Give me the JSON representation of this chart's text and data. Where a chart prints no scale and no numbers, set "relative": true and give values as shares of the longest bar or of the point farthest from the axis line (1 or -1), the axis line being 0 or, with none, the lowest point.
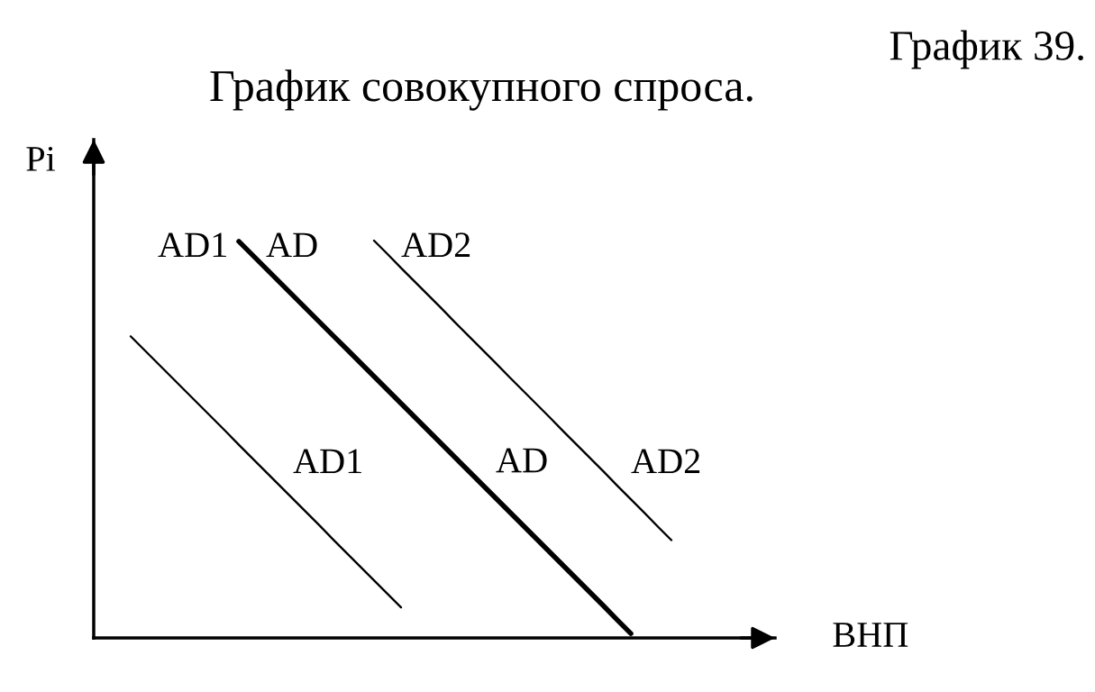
{
  "chart_data": {
    "type": "line",
    "title": "График совокупного спроса.",
    "xlabel": "ВНП",
    "ylabel": "Pi",
    "relative": true,
    "line_style": "solid",
    "tick_labels": false,
    "categories": [
      null,
      null,
      null,
      null,
      null,
      null,
      null,
      null,
      null,
      null,
      null,
      null,
      null,
      null,
      null,
      null,
      null,
      null,
      null,
      null,
      null,
      null,
      null,
      null,
      null,
      null,
      null,
      null,
      null,
      null,
      null,
      null,
      null,
      null,
      null,
      null,
      null,
      null,
      null,
      null,
      null,
      null,
      null,
      null,
      null,
      null,
      null,
      null,
      null,
      null
    ],
    "series": [
      {
        "name": "AD1",
        "color": "#000000",
        "values": [
          null,
          null,
          0.759,
          0.725,
          0.691,
          0.657,
          0.623,
          0.589,
          0.555,
          0.521,
          0.486,
          0.452,
          0.418,
          0.384,
          0.35,
          0.316,
          0.282,
          0.247,
          0.213,
          0.179,
          0.145,
          0.111,
          0.077,
          null,
          null,
          null,
          null,
          null,
          null,
          null,
          null,
          null,
          null,
          null,
          null,
          null,
          null,
          null,
          null,
          null,
          null,
          null,
          null,
          null,
          null,
          null,
          null,
          null,
          null,
          null
        ]
      },
      {
        "name": "AD",
        "color": "#000000",
        "values": [
          null,
          null,
          null,
          null,
          null,
          null,
          null,
          null,
          null,
          null,
          0.998,
          0.964,
          0.93,
          0.896,
          0.862,
          0.828,
          0.794,
          0.76,
          0.726,
          0.692,
          0.658,
          0.624,
          0.59,
          0.556,
          0.522,
          0.488,
          0.454,
          0.42,
          0.386,
          0.352,
          0.318,
          0.284,
          0.25,
          0.216,
          0.182,
          0.148,
          0.114,
          0.08,
          0.045,
          0.011,
          null,
          null,
          null,
          null,
          null,
          null,
          null,
          null,
          null,
          null
        ]
      },
      {
        "name": "AD2",
        "color": "#000000",
        "values": [
          null,
          null,
          null,
          null,
          null,
          null,
          null,
          null,
          null,
          null,
          null,
          null,
          null,
          null,
          null,
          null,
          null,
          null,
          null,
          null,
          1.0,
          0.966,
          0.931,
          0.897,
          0.863,
          0.829,
          0.794,
          0.76,
          0.726,
          0.692,
          0.657,
          0.623,
          0.589,
          0.555,
          0.52,
          0.486,
          0.452,
          0.418,
          0.383,
          0.349,
          0.315,
          0.28,
          0.246,
          null,
          null,
          null,
          null,
          null,
          null,
          null
        ]
      }
    ],
    "annotations": [
      "График 39."
    ]
  }
}
